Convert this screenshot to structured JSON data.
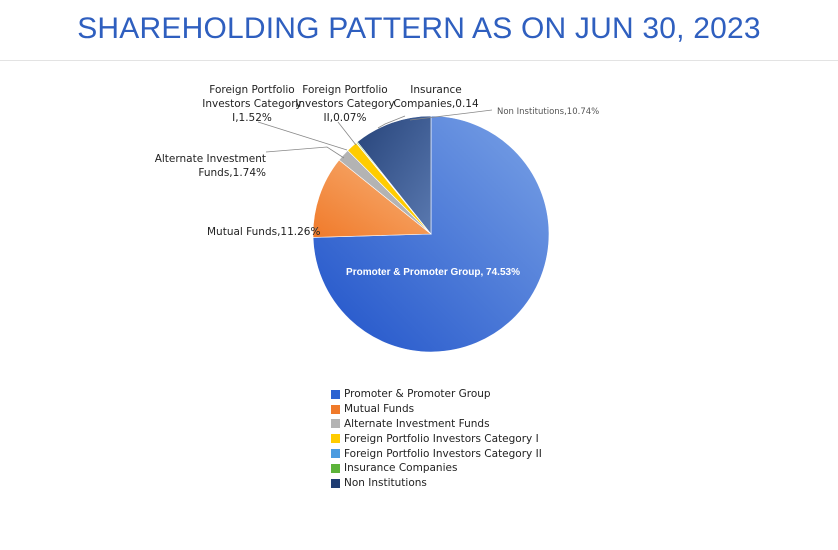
{
  "title": "SHAREHOLDING PATTERN AS ON JUN 30, 2023",
  "chart_data": {
    "type": "pie",
    "title": "SHAREHOLDING PATTERN AS ON JUN 30, 2023",
    "slices": [
      {
        "name": "Promoter & Promoter Group",
        "value": 74.53,
        "color": "#2b62d1",
        "label_lines": [
          "Promoter  & Promoter  Group, 74.53%"
        ]
      },
      {
        "name": "Mutual Funds",
        "value": 11.26,
        "color": "#f39a4e",
        "label_lines": [
          "Mutual Funds,11.26%"
        ]
      },
      {
        "name": "Alternate Investment Funds",
        "value": 1.74,
        "color": "#b3b3b3",
        "label_lines": [
          "Alternate Investment",
          "Funds,1.74%"
        ]
      },
      {
        "name": "Foreign Portfolio Investors Category I",
        "value": 1.52,
        "color": "#ffcc00",
        "label_lines": [
          "Foreign Portfolio",
          "Investors Category",
          "I,1.52%"
        ]
      },
      {
        "name": "Foreign Portfolio Investors Category II",
        "value": 0.07,
        "color": "#4a9be0",
        "label_lines": [
          "Foreign Portfolio",
          "Investors Category",
          "II,0.07%"
        ]
      },
      {
        "name": "Insurance Companies",
        "value": 0.14,
        "color": "#5cb33a",
        "label_lines": [
          "Insurance",
          "Companies,0.14"
        ]
      },
      {
        "name": "Non Institutions",
        "value": 10.74,
        "color": "#274a86",
        "label_lines": [
          "Non Institutions,10.74%"
        ]
      }
    ],
    "legend": [
      {
        "label": "Promoter & Promoter Group",
        "color": "#2b62d1"
      },
      {
        "label": "Mutual Funds",
        "color": "#f07a2a"
      },
      {
        "label": "Alternate Investment Funds",
        "color": "#b3b3b3"
      },
      {
        "label": "Foreign Portfolio Investors Category I",
        "color": "#ffcc00"
      },
      {
        "label": "Foreign Portfolio Investors Category II",
        "color": "#4a9be0"
      },
      {
        "label": "Insurance Companies",
        "color": "#5cb33a"
      },
      {
        "label": "Non Institutions",
        "color": "#1f3d73"
      }
    ],
    "legend_position": "bottom"
  }
}
